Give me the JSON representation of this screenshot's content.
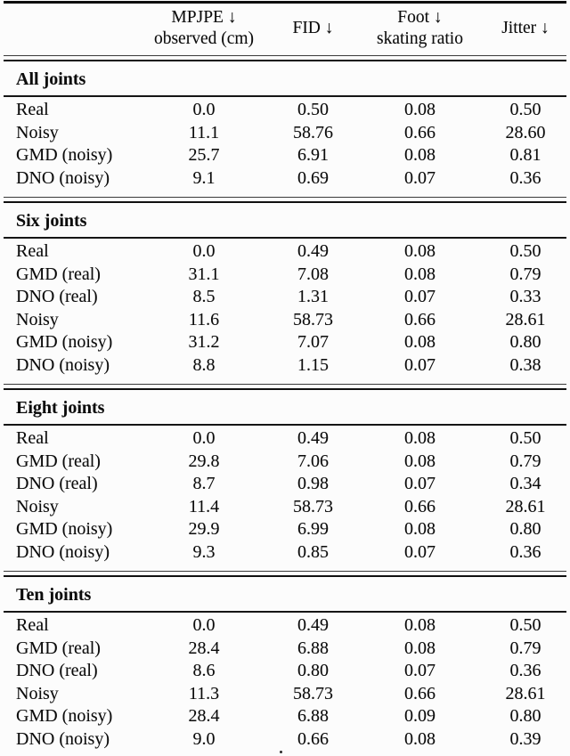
{
  "table": {
    "columns": [
      {
        "label_line1": "MPJPE ↓",
        "label_line2": "observed (cm)"
      },
      {
        "label_line1": "FID ↓",
        "label_line2": ""
      },
      {
        "label_line1": "Foot ↓",
        "label_line2": "skating ratio"
      },
      {
        "label_line1": "Jitter ↓",
        "label_line2": ""
      }
    ],
    "sections": [
      {
        "title": "All joints",
        "rows": [
          {
            "label": "Real",
            "values": [
              "0.0",
              "0.50",
              "0.08",
              "0.50"
            ]
          },
          {
            "label": "Noisy",
            "values": [
              "11.1",
              "58.76",
              "0.66",
              "28.60"
            ]
          },
          {
            "label": "GMD (noisy)",
            "values": [
              "25.7",
              "6.91",
              "0.08",
              "0.81"
            ]
          },
          {
            "label": "DNO (noisy)",
            "values": [
              "9.1",
              "0.69",
              "0.07",
              "0.36"
            ]
          }
        ]
      },
      {
        "title": "Six joints",
        "rows": [
          {
            "label": "Real",
            "values": [
              "0.0",
              "0.49",
              "0.08",
              "0.50"
            ]
          },
          {
            "label": "GMD (real)",
            "values": [
              "31.1",
              "7.08",
              "0.08",
              "0.79"
            ]
          },
          {
            "label": "DNO (real)",
            "values": [
              "8.5",
              "1.31",
              "0.07",
              "0.33"
            ]
          },
          {
            "label": "Noisy",
            "values": [
              "11.6",
              "58.73",
              "0.66",
              "28.61"
            ]
          },
          {
            "label": "GMD (noisy)",
            "values": [
              "31.2",
              "7.07",
              "0.08",
              "0.80"
            ]
          },
          {
            "label": "DNO (noisy)",
            "values": [
              "8.8",
              "1.15",
              "0.07",
              "0.38"
            ]
          }
        ]
      },
      {
        "title": "Eight joints",
        "rows": [
          {
            "label": "Real",
            "values": [
              "0.0",
              "0.49",
              "0.08",
              "0.50"
            ]
          },
          {
            "label": "GMD (real)",
            "values": [
              "29.8",
              "7.06",
              "0.08",
              "0.79"
            ]
          },
          {
            "label": "DNO (real)",
            "values": [
              "8.7",
              "0.98",
              "0.07",
              "0.34"
            ]
          },
          {
            "label": "Noisy",
            "values": [
              "11.4",
              "58.73",
              "0.66",
              "28.61"
            ]
          },
          {
            "label": "GMD (noisy)",
            "values": [
              "29.9",
              "6.99",
              "0.08",
              "0.80"
            ]
          },
          {
            "label": "DNO (noisy)",
            "values": [
              "9.3",
              "0.85",
              "0.07",
              "0.36"
            ]
          }
        ]
      },
      {
        "title": "Ten joints",
        "rows": [
          {
            "label": "Real",
            "values": [
              "0.0",
              "0.49",
              "0.08",
              "0.50"
            ]
          },
          {
            "label": "GMD (real)",
            "values": [
              "28.4",
              "6.88",
              "0.08",
              "0.79"
            ]
          },
          {
            "label": "DNO (real)",
            "values": [
              "8.6",
              "0.80",
              "0.07",
              "0.36"
            ]
          },
          {
            "label": "Noisy",
            "values": [
              "11.3",
              "58.73",
              "0.66",
              "28.61"
            ]
          },
          {
            "label": "GMD (noisy)",
            "values": [
              "28.4",
              "6.88",
              "0.09",
              "0.80"
            ]
          },
          {
            "label": "DNO (noisy)",
            "values": [
              "9.0",
              "0.66",
              "0.08",
              "0.39"
            ]
          }
        ]
      }
    ]
  },
  "colors": {
    "text": "#0c0c0c",
    "rule": "#151515",
    "background": "#fcfcfc"
  }
}
